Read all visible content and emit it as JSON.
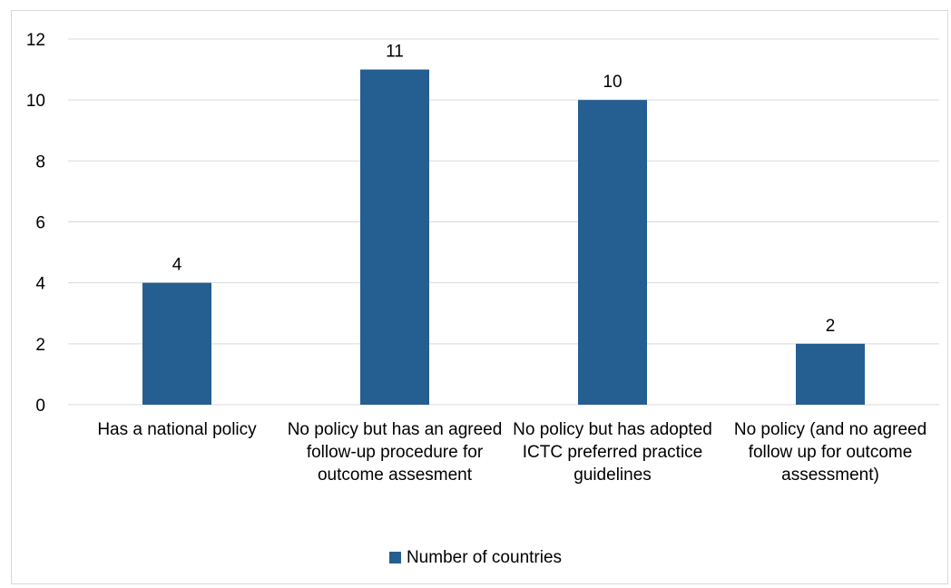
{
  "chart_data": {
    "type": "bar",
    "categories": [
      "Has a national policy",
      "No policy but has an agreed follow-up procedure for outcome assesment",
      "No policy but has adopted ICTC preferred practice guidelines",
      "No policy (and no agreed follow up for outcome assessment)"
    ],
    "series": [
      {
        "name": "Number of countries",
        "values": [
          4,
          11,
          10,
          2
        ]
      }
    ],
    "yticks": [
      "0",
      "2",
      "4",
      "6",
      "8",
      "10",
      "12"
    ],
    "ylim": [
      0,
      12
    ],
    "data_labels": [
      "4",
      "11",
      "10",
      "2"
    ],
    "grid": true,
    "legend": "bottom",
    "colors": {
      "bar": "#255e91",
      "grid": "#d9d9d9",
      "text": "#000000"
    }
  }
}
